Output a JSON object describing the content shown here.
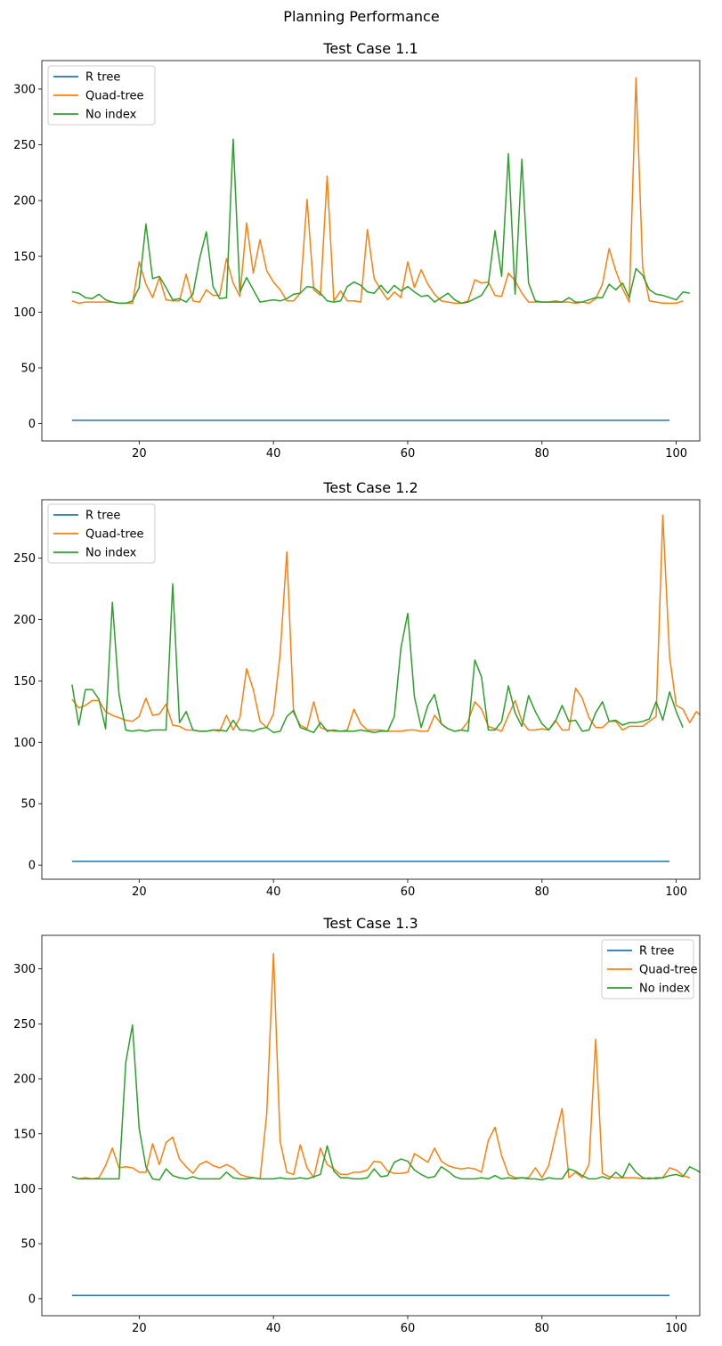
{
  "suptitle": "Planning Performance",
  "colors": {
    "R tree": "#1f77b4",
    "Quad-tree": "#ff7f0e",
    "No index": "#2ca02c"
  },
  "chart_data": [
    {
      "type": "line",
      "title": "Test Case 1.1",
      "xlabel": "",
      "ylabel": "",
      "xlim": [
        5.5,
        103.5
      ],
      "ylim": [
        -15.5,
        325.5
      ],
      "xticks": [
        20,
        40,
        60,
        80,
        100
      ],
      "yticks": [
        0,
        50,
        100,
        150,
        200,
        250,
        300
      ],
      "grid": false,
      "legend": "top-left",
      "x_start": 10,
      "x_step": 1,
      "series": [
        {
          "name": "R tree",
          "values": [
            3,
            3,
            3,
            3,
            3,
            3,
            3,
            3,
            3,
            3,
            3,
            3,
            3,
            3,
            3,
            3,
            3,
            3,
            3,
            3,
            3,
            3,
            3,
            3,
            3,
            3,
            3,
            3,
            3,
            3,
            3,
            3,
            3,
            3,
            3,
            3,
            3,
            3,
            3,
            3,
            3,
            3,
            3,
            3,
            3,
            3,
            3,
            3,
            3,
            3,
            3,
            3,
            3,
            3,
            3,
            3,
            3,
            3,
            3,
            3,
            3,
            3,
            3,
            3,
            3,
            3,
            3,
            3,
            3,
            3,
            3,
            3,
            3,
            3,
            3,
            3,
            3,
            3,
            3,
            3,
            3,
            3,
            3,
            3,
            3,
            3,
            3,
            3,
            3,
            3
          ]
        },
        {
          "name": "Quad-tree",
          "values": [
            110,
            108,
            109,
            109,
            109,
            109,
            109,
            108,
            108,
            108,
            145,
            125,
            113,
            131,
            111,
            110,
            110,
            134,
            110,
            109,
            120,
            115,
            115,
            148,
            126,
            114,
            180,
            135,
            165,
            137,
            127,
            120,
            110,
            110,
            117,
            201,
            120,
            115,
            222,
            110,
            119,
            110,
            110,
            109,
            174,
            130,
            120,
            111,
            118,
            113,
            145,
            122,
            138,
            125,
            116,
            110,
            109,
            108,
            108,
            110,
            129,
            126,
            127,
            115,
            114,
            135,
            128,
            117,
            109,
            109,
            109,
            109,
            110,
            109,
            109,
            108,
            109,
            108,
            112,
            125,
            157,
            137,
            121,
            109,
            310,
            140,
            110,
            109,
            108,
            108,
            108,
            110
          ]
        },
        {
          "name": "No index",
          "values": [
            118,
            117,
            113,
            112,
            116,
            111,
            109,
            108,
            108,
            110,
            122,
            179,
            130,
            132,
            122,
            111,
            112,
            109,
            116,
            148,
            172,
            123,
            112,
            113,
            255,
            118,
            131,
            120,
            109,
            110,
            111,
            110,
            112,
            116,
            117,
            123,
            122,
            117,
            110,
            109,
            110,
            123,
            127,
            124,
            118,
            117,
            124,
            117,
            124,
            119,
            123,
            118,
            114,
            115,
            109,
            113,
            117,
            111,
            108,
            109,
            112,
            115,
            125,
            173,
            132,
            242,
            116,
            237,
            126,
            110,
            109,
            109,
            109,
            109,
            113,
            109,
            109,
            111,
            113,
            113,
            125,
            120,
            126,
            113,
            139,
            133,
            120,
            116,
            115,
            113,
            111,
            118,
            117
          ]
        }
      ]
    },
    {
      "type": "line",
      "title": "Test Case 1.2",
      "xlabel": "",
      "ylabel": "",
      "xlim": [
        5.5,
        103.5
      ],
      "ylim": [
        -11.5,
        297.5
      ],
      "xticks": [
        20,
        40,
        60,
        80,
        100
      ],
      "yticks": [
        0,
        50,
        100,
        150,
        200,
        250
      ],
      "grid": false,
      "legend": "top-left",
      "x_start": 10,
      "x_step": 1,
      "series": [
        {
          "name": "R tree",
          "values": [
            3,
            3,
            3,
            3,
            3,
            3,
            3,
            3,
            3,
            3,
            3,
            3,
            3,
            3,
            3,
            3,
            3,
            3,
            3,
            3,
            3,
            3,
            3,
            3,
            3,
            3,
            3,
            3,
            3,
            3,
            3,
            3,
            3,
            3,
            3,
            3,
            3,
            3,
            3,
            3,
            3,
            3,
            3,
            3,
            3,
            3,
            3,
            3,
            3,
            3,
            3,
            3,
            3,
            3,
            3,
            3,
            3,
            3,
            3,
            3,
            3,
            3,
            3,
            3,
            3,
            3,
            3,
            3,
            3,
            3,
            3,
            3,
            3,
            3,
            3,
            3,
            3,
            3,
            3,
            3,
            3,
            3,
            3,
            3,
            3,
            3,
            3,
            3,
            3,
            3
          ]
        },
        {
          "name": "Quad-tree",
          "values": [
            135,
            128,
            130,
            134,
            134,
            125,
            122,
            120,
            118,
            117,
            121,
            136,
            122,
            123,
            131,
            114,
            113,
            110,
            110,
            109,
            109,
            110,
            109,
            122,
            110,
            120,
            160,
            143,
            117,
            112,
            123,
            172,
            255,
            124,
            114,
            111,
            133,
            112,
            110,
            109,
            109,
            110,
            127,
            115,
            110,
            110,
            110,
            109,
            109,
            109,
            110,
            110,
            109,
            109,
            122,
            115,
            111,
            109,
            110,
            117,
            133,
            127,
            113,
            111,
            109,
            122,
            134,
            117,
            110,
            110,
            111,
            110,
            118,
            110,
            110,
            144,
            136,
            120,
            112,
            112,
            117,
            117,
            110,
            113,
            113,
            113,
            117,
            121,
            285,
            170,
            130,
            127,
            116,
            125,
            120,
            124
          ]
        },
        {
          "name": "No index",
          "values": [
            147,
            114,
            143,
            143,
            135,
            111,
            214,
            139,
            110,
            109,
            110,
            109,
            110,
            110,
            110,
            229,
            116,
            125,
            110,
            109,
            109,
            110,
            110,
            109,
            118,
            110,
            110,
            109,
            111,
            112,
            108,
            109,
            121,
            126,
            112,
            110,
            108,
            116,
            109,
            110,
            109,
            109,
            109,
            110,
            109,
            108,
            109,
            109,
            121,
            177,
            205,
            137,
            112,
            130,
            139,
            115,
            111,
            109,
            110,
            109,
            167,
            153,
            110,
            110,
            117,
            146,
            124,
            113,
            138,
            125,
            115,
            110,
            117,
            130,
            117,
            118,
            109,
            110,
            124,
            133,
            117,
            118,
            114,
            116,
            116,
            117,
            119,
            133,
            118,
            141,
            125,
            112
          ]
        }
      ]
    },
    {
      "type": "line",
      "title": "Test Case 1.3",
      "xlabel": "",
      "ylabel": "",
      "xlim": [
        5.5,
        103.5
      ],
      "ylim": [
        -15.5,
        330.5
      ],
      "xticks": [
        20,
        40,
        60,
        80,
        100
      ],
      "yticks": [
        0,
        50,
        100,
        150,
        200,
        250,
        300
      ],
      "grid": false,
      "legend": "top-right",
      "x_start": 10,
      "x_step": 1,
      "series": [
        {
          "name": "R tree",
          "values": [
            3,
            3,
            3,
            3,
            3,
            3,
            3,
            3,
            3,
            3,
            3,
            3,
            3,
            3,
            3,
            3,
            3,
            3,
            3,
            3,
            3,
            3,
            3,
            3,
            3,
            3,
            3,
            3,
            3,
            3,
            3,
            3,
            3,
            3,
            3,
            3,
            3,
            3,
            3,
            3,
            3,
            3,
            3,
            3,
            3,
            3,
            3,
            3,
            3,
            3,
            3,
            3,
            3,
            3,
            3,
            3,
            3,
            3,
            3,
            3,
            3,
            3,
            3,
            3,
            3,
            3,
            3,
            3,
            3,
            3,
            3,
            3,
            3,
            3,
            3,
            3,
            3,
            3,
            3,
            3,
            3,
            3,
            3,
            3,
            3,
            3,
            3,
            3,
            3,
            3
          ]
        },
        {
          "name": "Quad-tree",
          "values": [
            111,
            109,
            110,
            109,
            110,
            121,
            137,
            119,
            120,
            119,
            115,
            115,
            141,
            122,
            142,
            147,
            127,
            120,
            114,
            122,
            125,
            121,
            119,
            122,
            119,
            113,
            111,
            110,
            109,
            168,
            314,
            143,
            115,
            113,
            140,
            119,
            110,
            137,
            122,
            118,
            113,
            113,
            115,
            115,
            117,
            125,
            124,
            116,
            114,
            114,
            115,
            132,
            128,
            124,
            137,
            125,
            121,
            119,
            118,
            119,
            118,
            115,
            144,
            156,
            130,
            113,
            110,
            110,
            110,
            119,
            110,
            121,
            148,
            173,
            110,
            115,
            110,
            122,
            236,
            114,
            111,
            110,
            110,
            110,
            110,
            109,
            110,
            109,
            110,
            119,
            117,
            112,
            110
          ]
        },
        {
          "name": "No index",
          "values": [
            111,
            109,
            109,
            109,
            109,
            109,
            109,
            109,
            215,
            249,
            155,
            120,
            109,
            108,
            118,
            112,
            110,
            109,
            111,
            109,
            109,
            109,
            109,
            115,
            110,
            109,
            109,
            110,
            109,
            109,
            109,
            110,
            109,
            109,
            110,
            109,
            111,
            113,
            139,
            116,
            110,
            110,
            109,
            109,
            110,
            118,
            111,
            112,
            124,
            127,
            125,
            117,
            113,
            110,
            111,
            120,
            116,
            111,
            109,
            109,
            109,
            110,
            109,
            112,
            109,
            110,
            109,
            110,
            109,
            109,
            108,
            110,
            109,
            109,
            118,
            116,
            112,
            109,
            109,
            111,
            109,
            115,
            110,
            123,
            115,
            110,
            109,
            110,
            110,
            112,
            113,
            111,
            120,
            117,
            113
          ]
        }
      ]
    }
  ]
}
